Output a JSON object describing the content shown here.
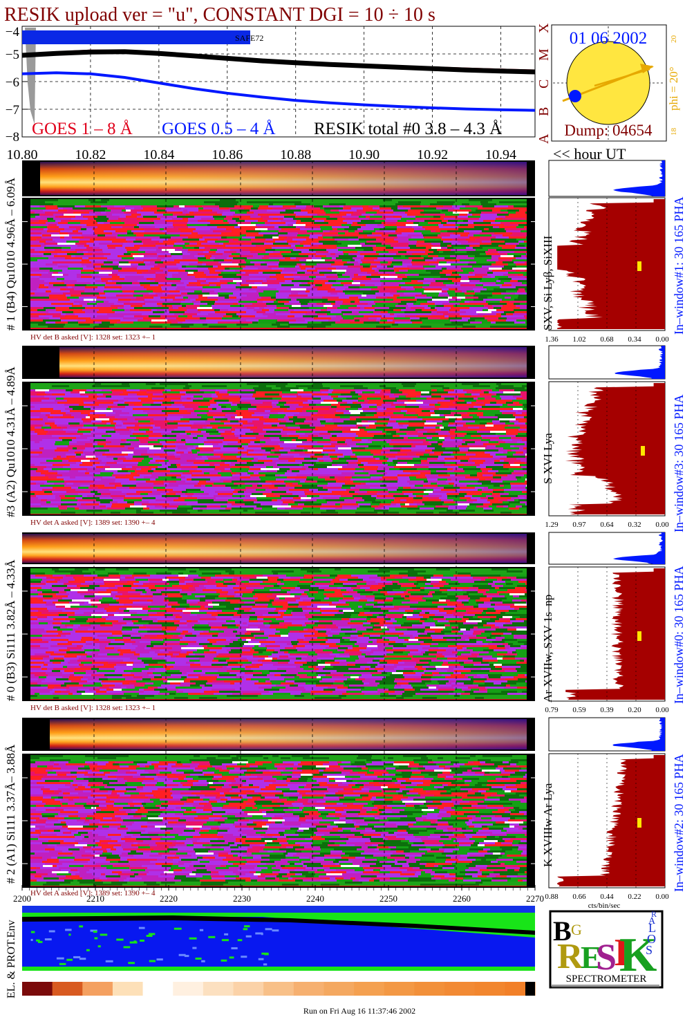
{
  "header": {
    "title": "RESIK upload ver = \"u\", CONSTANT  DGI =  10 ÷  10 s",
    "date": "01 06 2002",
    "dump": "Dump: 04654",
    "phi": "phi = 20°",
    "phi_tick_top": "20",
    "phi_tick_bottom": "18",
    "footer": "Run on Fri Aug 16 11:37:46 2002"
  },
  "chart_data": [
    {
      "type": "line",
      "name": "goes-lightcurve",
      "x_ticks": [
        "10.80",
        "10.82",
        "10.84",
        "10.86",
        "10.88",
        "10.90",
        "10.92",
        "10.94"
      ],
      "x_unit": "<< hour UT",
      "y_ticks": [
        "−4",
        "−5",
        "−6",
        "−7",
        "−8"
      ],
      "xlim": [
        10.8,
        10.95
      ],
      "ylim": [
        -8,
        -4
      ],
      "class_letters": [
        "X",
        "M",
        "C",
        "B",
        "A"
      ],
      "saa_label": "SAFE72",
      "legend": [
        "GOES 1 – 8 Å",
        "GOES 0.5 – 4 Å",
        "RESIK total #0  3.8 – 4.3 Å"
      ],
      "series": [
        {
          "name": "GOES 1 – 8 Å",
          "color": "#e0001b",
          "x": [
            10.8,
            10.81,
            10.82,
            10.83,
            10.84,
            10.85,
            10.86,
            10.87,
            10.88,
            10.89,
            10.9,
            10.91,
            10.92,
            10.93,
            10.94,
            10.95
          ],
          "y": [
            -5.02,
            -4.94,
            -4.88,
            -4.88,
            -4.95,
            -5.04,
            -5.13,
            -5.21,
            -5.28,
            -5.34,
            -5.39,
            -5.44,
            -5.49,
            -5.53,
            -5.57,
            -5.6
          ]
        },
        {
          "name": "RESIK total #0  3.8 – 4.3 Å",
          "color": "#000000",
          "x": [
            10.8,
            10.81,
            10.82,
            10.83,
            10.84,
            10.85,
            10.86,
            10.87,
            10.88,
            10.89,
            10.9,
            10.91,
            10.92,
            10.93,
            10.94,
            10.95
          ],
          "y": [
            -5.05,
            -4.98,
            -4.93,
            -4.92,
            -4.98,
            -5.07,
            -5.16,
            -5.25,
            -5.32,
            -5.38,
            -5.43,
            -5.48,
            -5.53,
            -5.58,
            -5.62,
            -5.65
          ]
        },
        {
          "name": "GOES 0.5 – 4 Å",
          "color": "#0018ff",
          "x": [
            10.8,
            10.81,
            10.82,
            10.83,
            10.84,
            10.85,
            10.86,
            10.87,
            10.88,
            10.89,
            10.9,
            10.91,
            10.92,
            10.93,
            10.94,
            10.95
          ],
          "y": [
            -5.72,
            -5.68,
            -5.72,
            -5.85,
            -6.05,
            -6.25,
            -6.42,
            -6.56,
            -6.68,
            -6.77,
            -6.84,
            -6.9,
            -6.95,
            -6.99,
            -7.02,
            -7.04
          ]
        }
      ]
    },
    {
      "type": "heatmap",
      "name": "resik-spectra",
      "channel_axis_ticks": [
        "2200",
        "2210",
        "2220",
        "2230",
        "2240",
        "2250",
        "2260",
        "2270"
      ],
      "panels": [
        {
          "label": "# 1 (B4) Qu1010 4.96Å – 6.09Å",
          "lines": "SXV, Si Lyβ, SiXIII",
          "hv": "HV det B asked [V]:  1328 set:  1323  +–    1",
          "pha": "In–window#1:   30 165 PHA",
          "scale": [
            "1.36",
            "1.02",
            "0.68",
            "0.34",
            "0.00"
          ]
        },
        {
          "label": "#3 (A2) Qu1010  4.31Å – 4.89Å",
          "lines": "S XVI Lya",
          "hv": "HV det A asked [V]:  1389 set:  1390  +–    4",
          "pha": "In–window#3:   30 165 PHA",
          "scale": [
            "1.29",
            "0.97",
            "0.64",
            "0.32",
            "0.00"
          ]
        },
        {
          "label": "# 0 (B3) Si111  3.82Å – 4.33Å",
          "lines": "Ar XVIIw,  SXV  1s–np",
          "hv": "HV det B asked [V]:  1328 set:  1323  +–    1",
          "pha": "In–window#0:   30 165 PHA",
          "scale": [
            "0.79",
            "0.59",
            "0.39",
            "0.20",
            "0.00"
          ]
        },
        {
          "label": "# 2 (A1) Si111  3.37Å– 3.88Å",
          "lines": "K XVIIIw  Ar Lya",
          "hv": "HV det A asked [V]:  1389 set:  1390  +–    4",
          "pha": "In–window#2:   30 165 PHA",
          "scale": [
            "0.88",
            "0.66",
            "0.44",
            "0.22",
            "0.00"
          ]
        }
      ],
      "profile_unit": "cts/bin/sec"
    }
  ],
  "env": {
    "label": "EL. & PROT.Env"
  },
  "logo": {
    "letters": [
      "B",
      "R",
      "G",
      "E",
      "S",
      "I",
      "K",
      "S",
      "O",
      "L",
      "A",
      "R"
    ],
    "spectrometer": "SPECTROMETER"
  },
  "colors": {
    "title": "#800000",
    "goes_long": "#e0001b",
    "goes_short": "#0018ff",
    "date": "#0018ff",
    "dump": "#800000",
    "phi": "#e6a800",
    "sun": "#ffe640",
    "profile": "#a50000",
    "pha": "#0018ff"
  }
}
